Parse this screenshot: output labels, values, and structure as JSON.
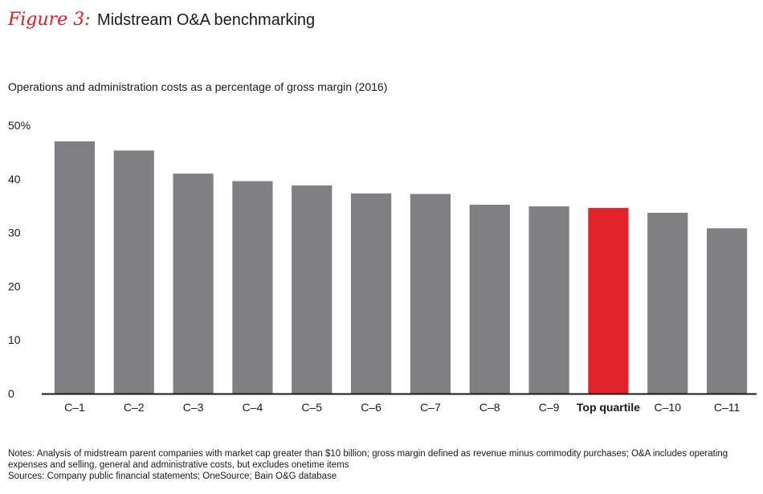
{
  "header": {
    "figure_label": "Figure 3:",
    "title": "Midstream O&A benchmarking"
  },
  "subtitle": "Operations and administration costs as a percentage of gross margin (2016)",
  "notes": {
    "notes_text": "Notes: Analysis of midstream parent companies with market cap greater than $10 billion; gross margin defined as revenue minus commodity purchases; O&A includes operating expenses and selling, general and administrative costs, but excludes onetime items",
    "sources_text": "Sources: Company public financial statements; OneSource; Bain O&G database"
  },
  "colors": {
    "bar": "#808083",
    "highlight": "#e3232a",
    "accent": "#e31b23"
  },
  "chart_data": {
    "type": "bar",
    "title": "Midstream O&A benchmarking",
    "ylabel": "Operations and administration costs as a percentage of gross margin (2016)",
    "xlabel": "",
    "categories": [
      "C–1",
      "C–2",
      "C–3",
      "C–4",
      "C–5",
      "C–6",
      "C–7",
      "C–8",
      "C–9",
      "Top quartile",
      "C–10",
      "C–11"
    ],
    "values": [
      47,
      45.3,
      41,
      39.6,
      38.8,
      37.3,
      37.2,
      35.2,
      34.9,
      34.6,
      33.7,
      30.8
    ],
    "highlight": "Top quartile",
    "ylim": [
      0,
      50
    ],
    "yticks": [
      0,
      10,
      20,
      30,
      40,
      50
    ],
    "ytick_labels": [
      "0",
      "10",
      "20",
      "30",
      "40",
      "50%"
    ],
    "grid": false,
    "legend": "none"
  }
}
